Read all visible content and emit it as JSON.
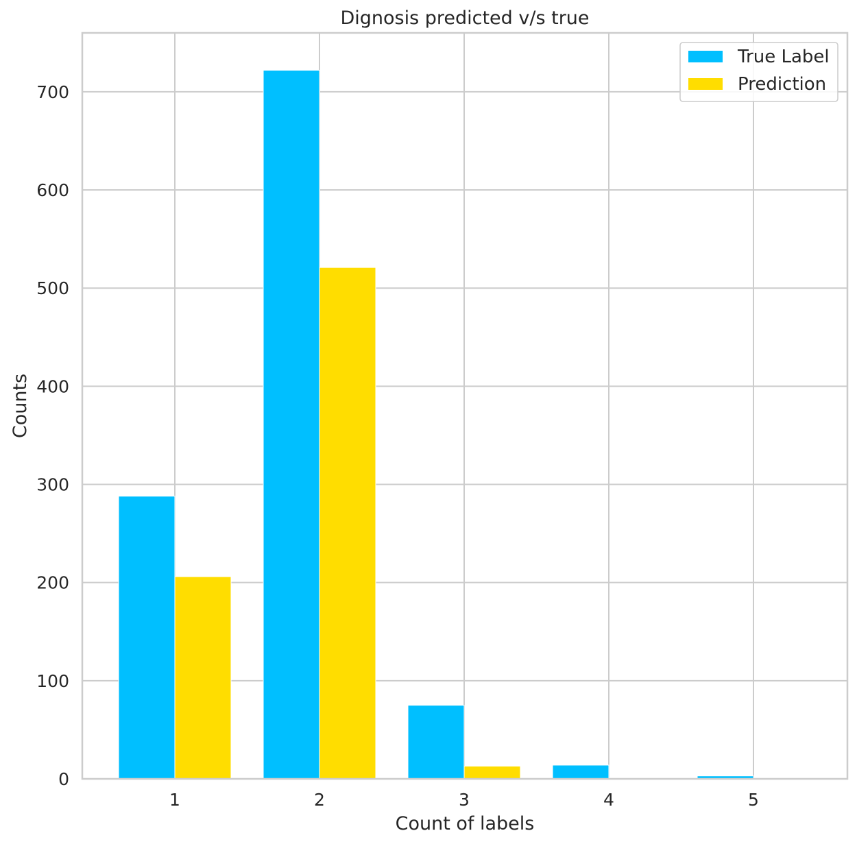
{
  "chart_data": {
    "type": "bar",
    "title": "Dignosis predicted v/s true",
    "xlabel": "Count of labels",
    "ylabel": "Counts",
    "categories": [
      "1",
      "2",
      "3",
      "4",
      "5"
    ],
    "series": [
      {
        "name": "True Label",
        "color": "#00bfff",
        "values": [
          288,
          722,
          75,
          14,
          3
        ]
      },
      {
        "name": "Prediction",
        "color": "#ffdd00",
        "values": [
          206,
          521,
          13,
          1,
          1
        ]
      }
    ],
    "ylim": [
      0,
      760
    ],
    "yticks": [
      0,
      100,
      200,
      300,
      400,
      500,
      600,
      700
    ],
    "grid": true,
    "legend_position": "top-right"
  }
}
